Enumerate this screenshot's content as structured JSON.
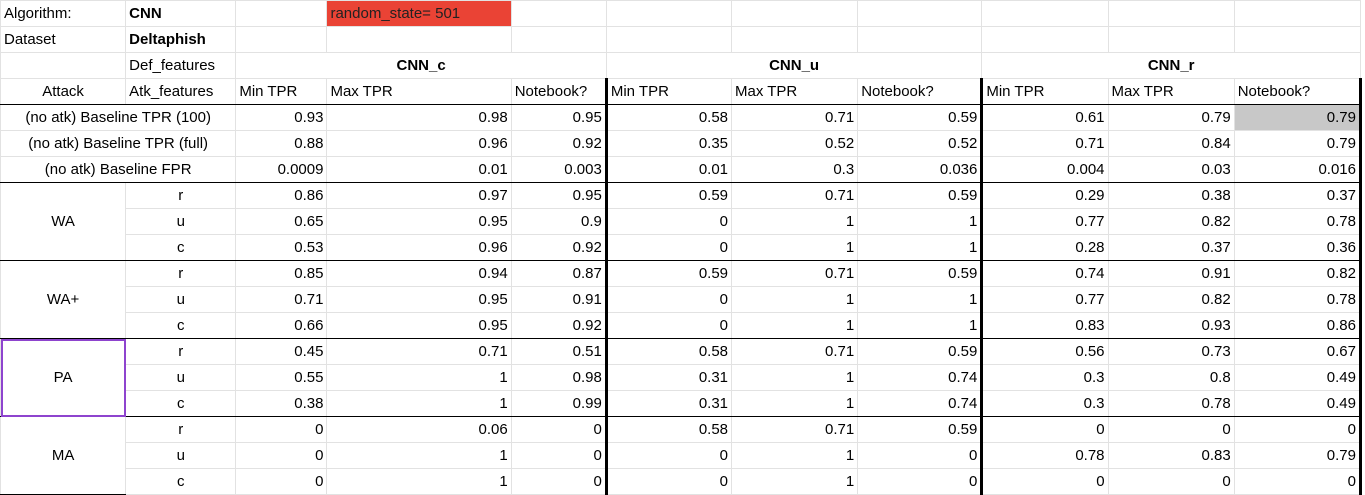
{
  "meta": {
    "algorithm_label": "Algorithm:",
    "algorithm_value": "CNN",
    "dataset_label": "Dataset",
    "dataset_value": "Deltaphish",
    "random_state": "random_state= 501",
    "def_features_label": "Def_features"
  },
  "groups": [
    "CNN_c",
    "CNN_u",
    "CNN_r"
  ],
  "headers": {
    "attack": "Attack",
    "atk_features": "Atk_features",
    "cols": [
      "Min TPR",
      "Max TPR",
      "Notebook?",
      "Min TPR",
      "Max TPR",
      "Notebook?",
      "Min TPR",
      "Max TPR",
      "Notebook?"
    ]
  },
  "baselines": [
    {
      "label": "(no atk) Baseline TPR (100)",
      "values": [
        "0.93",
        "0.98",
        "0.95",
        "0.58",
        "0.71",
        "0.59",
        "0.61",
        "0.79",
        "0.79"
      ]
    },
    {
      "label": "(no atk) Baseline TPR (full)",
      "values": [
        "0.88",
        "0.96",
        "0.92",
        "0.35",
        "0.52",
        "0.52",
        "0.71",
        "0.84",
        "0.79"
      ]
    },
    {
      "label": "(no atk) Baseline FPR",
      "values": [
        "0.0009",
        "0.01",
        "0.003",
        "0.01",
        "0.3",
        "0.036",
        "0.004",
        "0.03",
        "0.016"
      ]
    }
  ],
  "attacks": [
    {
      "name": "WA",
      "rows": [
        {
          "feat": "r",
          "values": [
            "0.86",
            "0.97",
            "0.95",
            "0.59",
            "0.71",
            "0.59",
            "0.29",
            "0.38",
            "0.37"
          ]
        },
        {
          "feat": "u",
          "values": [
            "0.65",
            "0.95",
            "0.9",
            "0",
            "1",
            "1",
            "0.77",
            "0.82",
            "0.78"
          ]
        },
        {
          "feat": "c",
          "values": [
            "0.53",
            "0.96",
            "0.92",
            "0",
            "1",
            "1",
            "0.28",
            "0.37",
            "0.36"
          ]
        }
      ]
    },
    {
      "name": "WA+",
      "rows": [
        {
          "feat": "r",
          "values": [
            "0.85",
            "0.94",
            "0.87",
            "0.59",
            "0.71",
            "0.59",
            "0.74",
            "0.91",
            "0.82"
          ]
        },
        {
          "feat": "u",
          "values": [
            "0.71",
            "0.95",
            "0.91",
            "0",
            "1",
            "1",
            "0.77",
            "0.82",
            "0.78"
          ]
        },
        {
          "feat": "c",
          "values": [
            "0.66",
            "0.95",
            "0.92",
            "0",
            "1",
            "1",
            "0.83",
            "0.93",
            "0.86"
          ]
        }
      ]
    },
    {
      "name": "PA",
      "rows": [
        {
          "feat": "r",
          "values": [
            "0.45",
            "0.71",
            "0.51",
            "0.58",
            "0.71",
            "0.59",
            "0.56",
            "0.73",
            "0.67"
          ]
        },
        {
          "feat": "u",
          "values": [
            "0.55",
            "1",
            "0.98",
            "0.31",
            "1",
            "0.74",
            "0.3",
            "0.8",
            "0.49"
          ]
        },
        {
          "feat": "c",
          "values": [
            "0.38",
            "1",
            "0.99",
            "0.31",
            "1",
            "0.74",
            "0.3",
            "0.78",
            "0.49"
          ]
        }
      ]
    },
    {
      "name": "MA",
      "rows": [
        {
          "feat": "r",
          "values": [
            "0",
            "0.06",
            "0",
            "0.58",
            "0.71",
            "0.59",
            "0",
            "0",
            "0"
          ]
        },
        {
          "feat": "u",
          "values": [
            "0",
            "1",
            "0",
            "0",
            "1",
            "0",
            "0.78",
            "0.83",
            "0.79"
          ]
        },
        {
          "feat": "c",
          "values": [
            "0",
            "1",
            "0",
            "0",
            "1",
            "0",
            "0",
            "0",
            "0"
          ]
        }
      ]
    }
  ]
}
